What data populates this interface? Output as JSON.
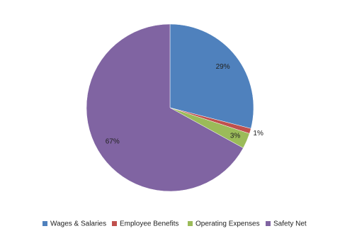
{
  "chart_data": {
    "type": "pie",
    "categories": [
      "Wages & Salaries",
      "Employee Benefits",
      "Operating Expenses",
      "Safety Net"
    ],
    "values": [
      29,
      1,
      3,
      67
    ],
    "value_labels": [
      "29%",
      "1%",
      "3%",
      "67%"
    ],
    "colors": [
      "#4f81bd",
      "#c0504d",
      "#9bbb59",
      "#8064a2"
    ],
    "legend": "bottom"
  }
}
